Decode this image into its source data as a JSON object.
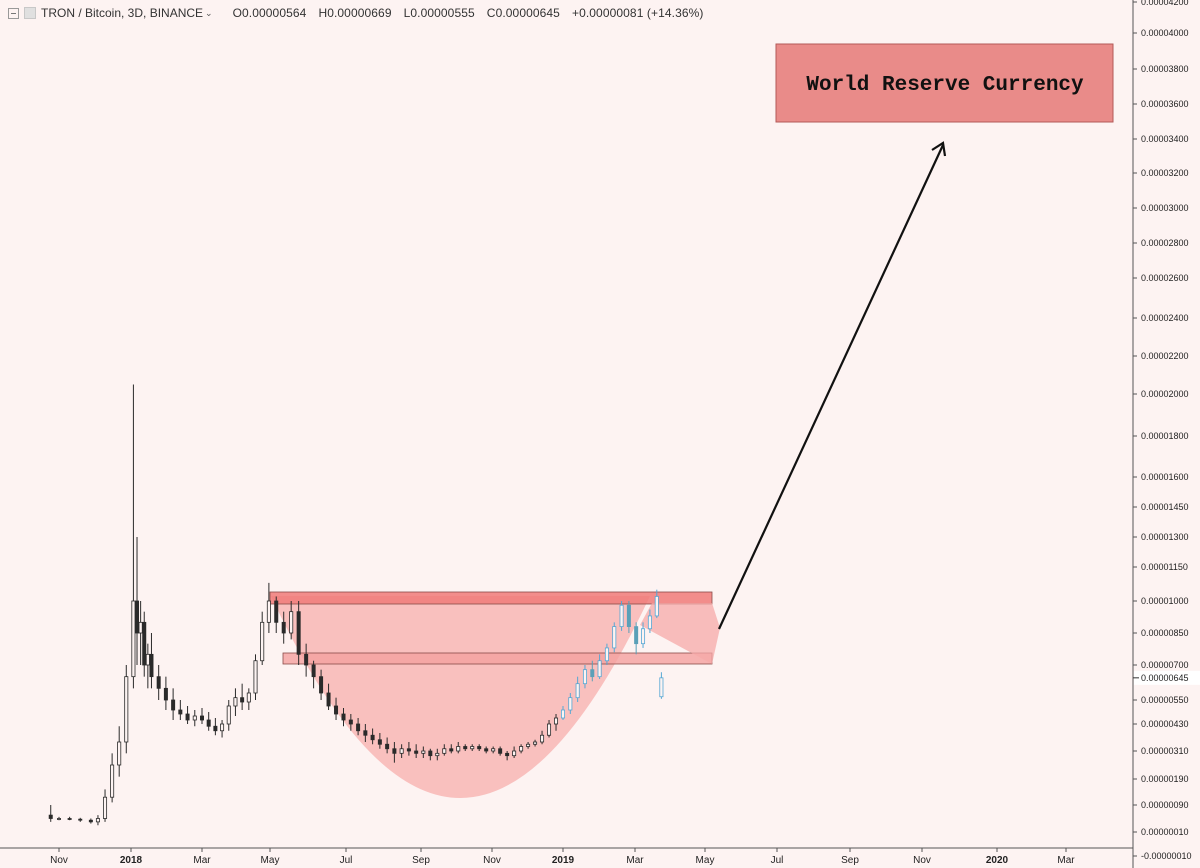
{
  "header": {
    "symbol": "TRON / Bitcoin, 3D, BINANCE",
    "open": "O0.00000564",
    "high": "H0.00000669",
    "low": "L0.00000555",
    "close": "C0.00000645",
    "change": "+0.00000081 (+14.36%)"
  },
  "chart_data": {
    "type": "candlestick",
    "symbol": "TRON / Bitcoin",
    "interval": "3D",
    "exchange": "BINANCE",
    "x_ticks": [
      {
        "label": "Nov",
        "date": "2017-11-01",
        "bold": false
      },
      {
        "label": "2018",
        "date": "2018-01-01",
        "bold": true
      },
      {
        "label": "Mar",
        "date": "2018-03-01",
        "bold": false
      },
      {
        "label": "May",
        "date": "2018-05-01",
        "bold": false
      },
      {
        "label": "Jul",
        "date": "2018-07-01",
        "bold": false
      },
      {
        "label": "Sep",
        "date": "2018-09-01",
        "bold": false
      },
      {
        "label": "Nov",
        "date": "2018-11-01",
        "bold": false
      },
      {
        "label": "2019",
        "date": "2019-01-01",
        "bold": true
      },
      {
        "label": "Mar",
        "date": "2019-03-01",
        "bold": false
      },
      {
        "label": "May",
        "date": "2019-05-01",
        "bold": false
      },
      {
        "label": "Jul",
        "date": "2019-07-01",
        "bold": false
      },
      {
        "label": "Sep",
        "date": "2019-09-01",
        "bold": false
      },
      {
        "label": "Nov",
        "date": "2019-11-01",
        "bold": false
      },
      {
        "label": "2020",
        "date": "2020-01-01",
        "bold": true
      },
      {
        "label": "Mar",
        "date": "2020-03-01",
        "bold": false
      }
    ],
    "y_ticks": [
      "0.00004200",
      "0.00004000",
      "0.00003800",
      "0.00003600",
      "0.00003400",
      "0.00003200",
      "0.00003000",
      "0.00002800",
      "0.00002600",
      "0.00002400",
      "0.00002200",
      "0.00002000",
      "0.00001800",
      "0.00001600",
      "0.00001450",
      "0.00001300",
      "0.00001150",
      "0.00001000",
      "0.00000850",
      "0.00000700",
      "0.00000550",
      "0.00000430",
      "0.00000310",
      "0.00000190",
      "0.00000090",
      "0.00000010",
      "-0.00000010"
    ],
    "last_price_label": "0.00000645",
    "ohlc": [
      [
        "2017-10-25",
        6e-07,
        9e-07,
        4e-07,
        5e-07
      ],
      [
        "2017-11-01",
        5e-07,
        5.5e-07,
        4.5e-07,
        5e-07
      ],
      [
        "2017-11-10",
        5e-07,
        5.5e-07,
        4.5e-07,
        4.8e-07
      ],
      [
        "2017-11-19",
        4.8e-07,
        5.2e-07,
        4e-07,
        4.5e-07
      ],
      [
        "2017-11-28",
        4.5e-07,
        5e-07,
        3.5e-07,
        4e-07
      ],
      [
        "2017-12-04",
        4e-07,
        6e-07,
        3e-07,
        5e-07
      ],
      [
        "2017-12-10",
        5e-07,
        1.5e-06,
        4e-07,
        1.2e-06
      ],
      [
        "2017-12-16",
        1.2e-06,
        3e-06,
        1e-06,
        2.5e-06
      ],
      [
        "2017-12-22",
        2.5e-06,
        4.2e-06,
        2e-06,
        3.5e-06
      ],
      [
        "2017-12-28",
        3.5e-06,
        7e-06,
        3e-06,
        6.5e-06
      ],
      [
        "2018-01-03",
        6.5e-06,
        2.05e-05,
        6e-06,
        1e-05
      ],
      [
        "2018-01-06",
        1e-05,
        1.3e-05,
        7e-06,
        8.5e-06
      ],
      [
        "2018-01-09",
        8.5e-06,
        1e-05,
        7e-06,
        9e-06
      ],
      [
        "2018-01-12",
        9e-06,
        9.5e-06,
        6.5e-06,
        7e-06
      ],
      [
        "2018-01-15",
        7e-06,
        8e-06,
        6e-06,
        7.5e-06
      ],
      [
        "2018-01-18",
        7.5e-06,
        8.5e-06,
        6e-06,
        6.5e-06
      ],
      [
        "2018-01-24",
        6.5e-06,
        7e-06,
        5.5e-06,
        6e-06
      ],
      [
        "2018-01-30",
        6e-06,
        6.5e-06,
        5e-06,
        5.5e-06
      ],
      [
        "2018-02-05",
        5.5e-06,
        6e-06,
        4.5e-06,
        5e-06
      ],
      [
        "2018-02-11",
        5e-06,
        5.5e-06,
        4.5e-06,
        4.8e-06
      ],
      [
        "2018-02-17",
        4.8e-06,
        5.2e-06,
        4.3e-06,
        4.5e-06
      ],
      [
        "2018-02-23",
        4.5e-06,
        5e-06,
        4.2e-06,
        4.7e-06
      ],
      [
        "2018-03-01",
        4.7e-06,
        5.1e-06,
        4.3e-06,
        4.5e-06
      ],
      [
        "2018-03-07",
        4.5e-06,
        4.9e-06,
        4e-06,
        4.2e-06
      ],
      [
        "2018-03-13",
        4.2e-06,
        4.6e-06,
        3.8e-06,
        4e-06
      ],
      [
        "2018-03-19",
        4e-06,
        4.5e-06,
        3.7e-06,
        4.3e-06
      ],
      [
        "2018-03-25",
        4.3e-06,
        5.5e-06,
        4e-06,
        5.2e-06
      ],
      [
        "2018-03-31",
        5.2e-06,
        6e-06,
        4.7e-06,
        5.6e-06
      ],
      [
        "2018-04-06",
        5.6e-06,
        6.2e-06,
        5e-06,
        5.4e-06
      ],
      [
        "2018-04-12",
        5.4e-06,
        6e-06,
        5e-06,
        5.8e-06
      ],
      [
        "2018-04-18",
        5.8e-06,
        7.5e-06,
        5.5e-06,
        7.2e-06
      ],
      [
        "2018-04-24",
        7.2e-06,
        9.5e-06,
        7e-06,
        9e-06
      ],
      [
        "2018-04-30",
        9e-06,
        1.08e-05,
        8.5e-06,
        1e-05
      ],
      [
        "2018-05-06",
        1e-05,
        1.02e-05,
        8.5e-06,
        9e-06
      ],
      [
        "2018-05-12",
        9e-06,
        9.5e-06,
        8e-06,
        8.5e-06
      ],
      [
        "2018-05-18",
        8.5e-06,
        1e-05,
        8.2e-06,
        9.5e-06
      ],
      [
        "2018-05-24",
        9.5e-06,
        1e-05,
        7e-06,
        7.5e-06
      ],
      [
        "2018-05-30",
        7.5e-06,
        8e-06,
        6.5e-06,
        7e-06
      ],
      [
        "2018-06-05",
        7e-06,
        7.2e-06,
        6e-06,
        6.5e-06
      ],
      [
        "2018-06-11",
        6.5e-06,
        6.8e-06,
        5.5e-06,
        5.8e-06
      ],
      [
        "2018-06-17",
        5.8e-06,
        6.2e-06,
        5e-06,
        5.2e-06
      ],
      [
        "2018-06-23",
        5.2e-06,
        5.6e-06,
        4.5e-06,
        4.8e-06
      ],
      [
        "2018-06-29",
        4.8e-06,
        5.1e-06,
        4.2e-06,
        4.5e-06
      ],
      [
        "2018-07-05",
        4.5e-06,
        4.8e-06,
        4e-06,
        4.3e-06
      ],
      [
        "2018-07-11",
        4.3e-06,
        4.6e-06,
        3.8e-06,
        4e-06
      ],
      [
        "2018-07-17",
        4e-06,
        4.3e-06,
        3.5e-06,
        3.8e-06
      ],
      [
        "2018-07-23",
        3.8e-06,
        4.1e-06,
        3.4e-06,
        3.6e-06
      ],
      [
        "2018-07-29",
        3.6e-06,
        3.9e-06,
        3.2e-06,
        3.4e-06
      ],
      [
        "2018-08-04",
        3.4e-06,
        3.7e-06,
        3e-06,
        3.2e-06
      ],
      [
        "2018-08-10",
        3.2e-06,
        3.5e-06,
        2.6e-06,
        3e-06
      ],
      [
        "2018-08-16",
        3e-06,
        3.4e-06,
        2.8e-06,
        3.2e-06
      ],
      [
        "2018-08-22",
        3.2e-06,
        3.5e-06,
        2.9e-06,
        3.1e-06
      ],
      [
        "2018-08-28",
        3.1e-06,
        3.4e-06,
        2.8e-06,
        3e-06
      ],
      [
        "2018-09-03",
        3e-06,
        3.3e-06,
        2.8e-06,
        3.1e-06
      ],
      [
        "2018-09-09",
        3.1e-06,
        3.2e-06,
        2.7e-06,
        2.9e-06
      ],
      [
        "2018-09-15",
        2.9e-06,
        3.2e-06,
        2.7e-06,
        3e-06
      ],
      [
        "2018-09-21",
        3e-06,
        3.4e-06,
        2.9e-06,
        3.2e-06
      ],
      [
        "2018-09-27",
        3.2e-06,
        3.4e-06,
        3e-06,
        3.1e-06
      ],
      [
        "2018-10-03",
        3.1e-06,
        3.5e-06,
        3e-06,
        3.3e-06
      ],
      [
        "2018-10-09",
        3.3e-06,
        3.4e-06,
        3.1e-06,
        3.2e-06
      ],
      [
        "2018-10-15",
        3.2e-06,
        3.4e-06,
        3.1e-06,
        3.3e-06
      ],
      [
        "2018-10-21",
        3.3e-06,
        3.4e-06,
        3.1e-06,
        3.2e-06
      ],
      [
        "2018-10-27",
        3.2e-06,
        3.3e-06,
        3e-06,
        3.1e-06
      ],
      [
        "2018-11-02",
        3.1e-06,
        3.3e-06,
        3e-06,
        3.2e-06
      ],
      [
        "2018-11-08",
        3.2e-06,
        3.3e-06,
        2.9e-06,
        3e-06
      ],
      [
        "2018-11-14",
        3e-06,
        3.1e-06,
        2.7e-06,
        2.9e-06
      ],
      [
        "2018-11-20",
        2.9e-06,
        3.3e-06,
        2.8e-06,
        3.1e-06
      ],
      [
        "2018-11-26",
        3.1e-06,
        3.4e-06,
        3e-06,
        3.3e-06
      ],
      [
        "2018-12-02",
        3.3e-06,
        3.5e-06,
        3.2e-06,
        3.4e-06
      ],
      [
        "2018-12-08",
        3.4e-06,
        3.6e-06,
        3.3e-06,
        3.5e-06
      ],
      [
        "2018-12-14",
        3.5e-06,
        4e-06,
        3.4e-06,
        3.8e-06
      ],
      [
        "2018-12-20",
        3.8e-06,
        4.5e-06,
        3.7e-06,
        4.3e-06
      ],
      [
        "2018-12-26",
        4.3e-06,
        4.8e-06,
        4e-06,
        4.6e-06
      ],
      [
        "2019-01-01",
        4.6e-06,
        5.2e-06,
        4.5e-06,
        5e-06
      ],
      [
        "2019-01-07",
        5e-06,
        5.8e-06,
        4.8e-06,
        5.6e-06
      ],
      [
        "2019-01-13",
        5.6e-06,
        6.5e-06,
        5.4e-06,
        6.2e-06
      ],
      [
        "2019-01-19",
        6.2e-06,
        7e-06,
        6e-06,
        6.8e-06
      ],
      [
        "2019-01-25",
        6.8e-06,
        7.2e-06,
        6.3e-06,
        6.5e-06
      ],
      [
        "2019-01-31",
        6.5e-06,
        7.5e-06,
        6.4e-06,
        7.2e-06
      ],
      [
        "2019-02-06",
        7.2e-06,
        8e-06,
        7e-06,
        7.8e-06
      ],
      [
        "2019-02-12",
        7.8e-06,
        9e-06,
        7.6e-06,
        8.8e-06
      ],
      [
        "2019-02-18",
        8.8e-06,
        1e-05,
        8.6e-06,
        9.8e-06
      ],
      [
        "2019-02-24",
        9.8e-06,
        1e-05,
        8.5e-06,
        8.8e-06
      ],
      [
        "2019-03-02",
        8.8e-06,
        9e-06,
        7.5e-06,
        8e-06
      ],
      [
        "2019-03-08",
        8e-06,
        9e-06,
        7.8e-06,
        8.7e-06
      ],
      [
        "2019-03-14",
        8.7e-06,
        9.6e-06,
        8.5e-06,
        9.3e-06
      ],
      [
        "2019-03-20",
        9.3e-06,
        1.05e-05,
        9.2e-06,
        1.02e-05
      ],
      [
        "2019-03-24",
        5.64e-06,
        6.69e-06,
        5.55e-06,
        6.45e-06
      ]
    ],
    "annotations": {
      "callout_text": "World Reserve Currency"
    }
  }
}
